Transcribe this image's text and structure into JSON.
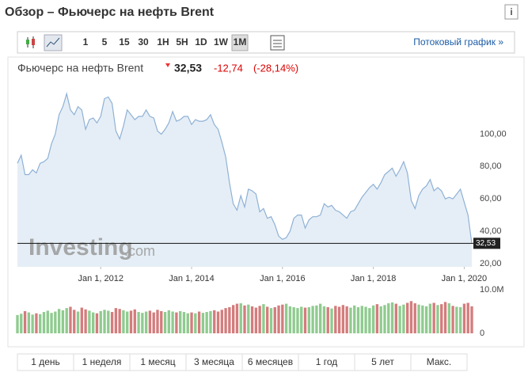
{
  "header": {
    "title": "Обзор – Фьючерс на нефть Brent"
  },
  "toolbar": {
    "intervals": [
      "1",
      "5",
      "15",
      "30",
      "1H",
      "5H",
      "1D",
      "1W",
      "1M"
    ],
    "active": "1M",
    "link": "Потоковый график »"
  },
  "quote": {
    "name": "Фьючерс на нефть Brent",
    "change": "-12,74",
    "change_pct": "(-28,14%)"
  },
  "chart_data": {
    "type": "area",
    "x": [
      "2010-03",
      "2010-04",
      "2010-05",
      "2010-06",
      "2010-07",
      "2010-08",
      "2010-09",
      "2010-10",
      "2010-11",
      "2010-12",
      "2011-01",
      "2011-02",
      "2011-03",
      "2011-04",
      "2011-05",
      "2011-06",
      "2011-07",
      "2011-08",
      "2011-09",
      "2011-10",
      "2011-11",
      "2011-12",
      "2012-01",
      "2012-02",
      "2012-03",
      "2012-04",
      "2012-05",
      "2012-06",
      "2012-07",
      "2012-08",
      "2012-09",
      "2012-10",
      "2012-11",
      "2012-12",
      "2013-01",
      "2013-02",
      "2013-03",
      "2013-04",
      "2013-05",
      "2013-06",
      "2013-07",
      "2013-08",
      "2013-09",
      "2013-10",
      "2013-11",
      "2013-12",
      "2014-01",
      "2014-02",
      "2014-03",
      "2014-04",
      "2014-05",
      "2014-06",
      "2014-07",
      "2014-08",
      "2014-09",
      "2014-10",
      "2014-11",
      "2014-12",
      "2015-01",
      "2015-02",
      "2015-03",
      "2015-04",
      "2015-05",
      "2015-06",
      "2015-07",
      "2015-08",
      "2015-09",
      "2015-10",
      "2015-11",
      "2015-12",
      "2016-01",
      "2016-02",
      "2016-03",
      "2016-04",
      "2016-05",
      "2016-06",
      "2016-07",
      "2016-08",
      "2016-09",
      "2016-10",
      "2016-11",
      "2016-12",
      "2017-01",
      "2017-02",
      "2017-03",
      "2017-04",
      "2017-05",
      "2017-06",
      "2017-07",
      "2017-08",
      "2017-09",
      "2017-10",
      "2017-11",
      "2017-12",
      "2018-01",
      "2018-02",
      "2018-03",
      "2018-04",
      "2018-05",
      "2018-06",
      "2018-07",
      "2018-08",
      "2018-09",
      "2018-10",
      "2018-11",
      "2018-12",
      "2019-01",
      "2019-02",
      "2019-03",
      "2019-04",
      "2019-05",
      "2019-06",
      "2019-07",
      "2019-08",
      "2019-09",
      "2019-10",
      "2019-11",
      "2019-12",
      "2020-01",
      "2020-02",
      "2020-03"
    ],
    "series": [
      {
        "color": "#8fb1d6",
        "fill": "#e5eef6",
        "values": [
          82,
          87,
          75,
          75,
          78,
          76,
          82,
          83,
          85,
          94,
          100,
          112,
          117,
          125,
          115,
          112,
          117,
          115,
          103,
          109,
          110,
          107,
          111,
          122,
          123,
          119,
          102,
          97,
          105,
          115,
          112,
          109,
          111,
          111,
          115,
          111,
          110,
          102,
          100,
          103,
          107,
          114,
          108,
          109,
          111,
          111,
          106,
          109,
          108,
          108,
          109,
          112,
          106,
          103,
          95,
          86,
          70,
          57,
          53,
          62,
          55,
          66,
          65,
          63,
          52,
          54,
          48,
          49,
          44,
          37,
          35,
          36,
          40,
          48,
          50,
          50,
          42,
          47,
          49,
          49,
          50,
          57,
          55,
          56,
          53,
          52,
          50,
          48,
          52,
          53,
          57,
          61,
          64,
          67,
          69,
          66,
          70,
          75,
          77,
          79,
          74,
          78,
          83,
          76,
          59,
          54,
          62,
          66,
          68,
          72,
          65,
          67,
          65,
          60,
          61,
          60,
          63,
          66,
          58,
          50,
          32.53
        ]
      }
    ],
    "xlim": [
      "2010-03",
      "2020-03"
    ],
    "xticks": [
      {
        "value": "2012-01",
        "label": "Jan 1, 2012"
      },
      {
        "value": "2014-01",
        "label": "Jan 1, 2014"
      },
      {
        "value": "2016-01",
        "label": "Jan 1, 2016"
      },
      {
        "value": "2018-01",
        "label": "Jan 1, 2018"
      },
      {
        "value": "2020-01",
        "label": "Jan 1, 2020"
      }
    ],
    "ylim": [
      18,
      134
    ],
    "yticks": [
      {
        "value": 20,
        "label": "20,00"
      },
      {
        "value": 40,
        "label": "40,00"
      },
      {
        "value": 60,
        "label": "60,00"
      },
      {
        "value": 80,
        "label": "80,00"
      },
      {
        "value": 100,
        "label": "100,00"
      }
    ],
    "last": {
      "value": 32.53,
      "label": "32,53"
    },
    "watermark": [
      "Investing",
      ".com"
    ],
    "volume": {
      "values": [
        4.2,
        4.5,
        5.1,
        4.8,
        4.3,
        4.6,
        4.4,
        4.9,
        5.2,
        4.7,
        5.0,
        5.6,
        5.3,
        5.8,
        6.1,
        5.4,
        5.0,
        5.9,
        5.5,
        5.2,
        4.8,
        4.6,
        5.1,
        5.4,
        5.2,
        4.9,
        5.8,
        5.6,
        5.3,
        5.0,
        5.2,
        5.5,
        4.9,
        4.7,
        5.0,
        5.2,
        4.8,
        5.4,
        5.1,
        4.9,
        5.3,
        5.0,
        4.8,
        5.1,
        4.9,
        4.6,
        4.8,
        4.6,
        5.0,
        4.7,
        4.9,
        5.1,
        5.3,
        5.0,
        5.4,
        5.8,
        6.0,
        6.5,
        6.8,
        6.9,
        6.4,
        6.6,
        6.2,
        5.9,
        6.3,
        6.7,
        6.1,
        5.8,
        6.0,
        6.4,
        6.6,
        6.8,
        6.2,
        6.0,
        5.8,
        6.1,
        5.9,
        6.0,
        6.3,
        6.4,
        6.8,
        6.2,
        6.0,
        5.7,
        6.3,
        6.1,
        6.5,
        6.2,
        5.9,
        6.4,
        6.0,
        6.3,
        6.1,
        5.8,
        6.4,
        6.7,
        6.2,
        6.5,
        6.9,
        7.1,
        6.8,
        6.3,
        6.6,
        7.0,
        7.4,
        6.9,
        6.6,
        6.4,
        6.2,
        6.8,
        7.0,
        6.5,
        6.7,
        7.2,
        6.9,
        6.3,
        6.1,
        6.0,
        6.8,
        7.0,
        6.2
      ],
      "ylim": [
        0,
        10
      ],
      "yticks": [
        {
          "value": 10,
          "label": "10.0M"
        },
        0
      ],
      "up_color": "#8fcb8f",
      "down_color": "#d47c7c"
    }
  },
  "periods": [
    "1 день",
    "1 неделя",
    "1 месяц",
    "3 месяца",
    "6 месяцев",
    "1 год",
    "5 лет",
    "Макс."
  ]
}
